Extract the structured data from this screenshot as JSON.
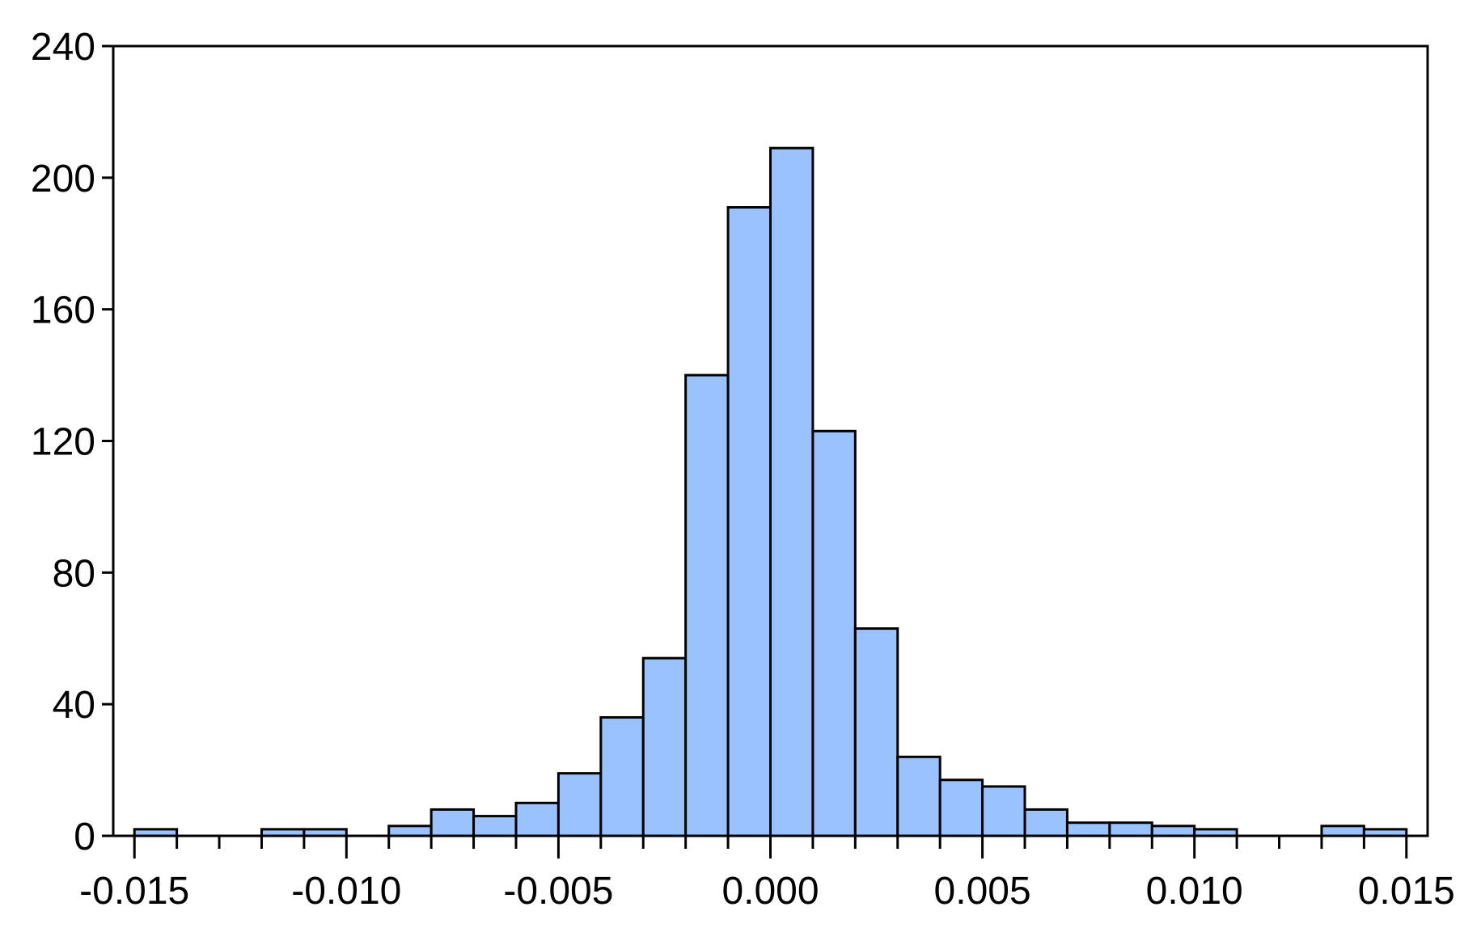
{
  "chart_data": {
    "type": "histogram",
    "title": "",
    "xlabel": "",
    "ylabel": "",
    "xlim": [
      -0.0155,
      0.0155
    ],
    "ylim": [
      0,
      240
    ],
    "bin_width": 0.001,
    "x_ticks": [
      -0.015,
      -0.01,
      -0.005,
      0.0,
      0.005,
      0.01,
      0.015
    ],
    "x_tick_labels": [
      "-0.015",
      "-0.010",
      "-0.005",
      "0.000",
      "0.005",
      "0.010",
      "0.015"
    ],
    "y_ticks": [
      0,
      40,
      80,
      120,
      160,
      200,
      240
    ],
    "y_tick_labels": [
      "0",
      "40",
      "80",
      "120",
      "160",
      "200",
      "240"
    ],
    "grid": false,
    "legend": "none",
    "bins": [
      {
        "start": -0.015,
        "end": -0.014,
        "count": 2
      },
      {
        "start": -0.012,
        "end": -0.011,
        "count": 2
      },
      {
        "start": -0.011,
        "end": -0.01,
        "count": 2
      },
      {
        "start": -0.009,
        "end": -0.008,
        "count": 3
      },
      {
        "start": -0.008,
        "end": -0.007,
        "count": 8
      },
      {
        "start": -0.007,
        "end": -0.006,
        "count": 6
      },
      {
        "start": -0.006,
        "end": -0.005,
        "count": 10
      },
      {
        "start": -0.005,
        "end": -0.004,
        "count": 19
      },
      {
        "start": -0.004,
        "end": -0.003,
        "count": 36
      },
      {
        "start": -0.003,
        "end": -0.002,
        "count": 54
      },
      {
        "start": -0.002,
        "end": -0.001,
        "count": 140
      },
      {
        "start": -0.001,
        "end": 0.0,
        "count": 191
      },
      {
        "start": 0.0,
        "end": 0.001,
        "count": 209
      },
      {
        "start": 0.001,
        "end": 0.002,
        "count": 123
      },
      {
        "start": 0.002,
        "end": 0.003,
        "count": 63
      },
      {
        "start": 0.003,
        "end": 0.004,
        "count": 24
      },
      {
        "start": 0.004,
        "end": 0.005,
        "count": 17
      },
      {
        "start": 0.005,
        "end": 0.006,
        "count": 15
      },
      {
        "start": 0.006,
        "end": 0.007,
        "count": 8
      },
      {
        "start": 0.007,
        "end": 0.008,
        "count": 4
      },
      {
        "start": 0.008,
        "end": 0.009,
        "count": 4
      },
      {
        "start": 0.009,
        "end": 0.01,
        "count": 3
      },
      {
        "start": 0.01,
        "end": 0.011,
        "count": 2
      },
      {
        "start": 0.013,
        "end": 0.014,
        "count": 3
      },
      {
        "start": 0.014,
        "end": 0.015,
        "count": 2
      }
    ],
    "colors": {
      "bar_fill": "#99c2ff",
      "bar_stroke": "#000000"
    }
  }
}
